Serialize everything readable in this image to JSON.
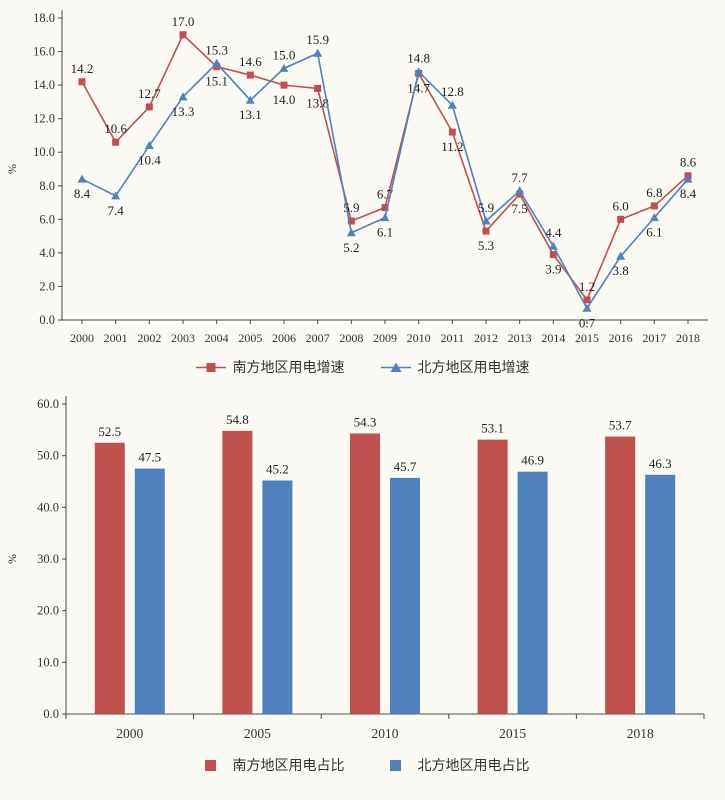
{
  "colors": {
    "south": "#C0504D",
    "north": "#4F81BD",
    "axis": "#4a4a4a",
    "text": "#1f1f1f",
    "background": "#fbfaf4"
  },
  "chart_data": [
    {
      "type": "line",
      "title": "",
      "xlabel": "",
      "ylabel": "%",
      "ylim": [
        0,
        18
      ],
      "ytick_step": 2,
      "grid": false,
      "legend_position": "bottom",
      "categories": [
        "2000",
        "2001",
        "2002",
        "2003",
        "2004",
        "2005",
        "2006",
        "2007",
        "2008",
        "2009",
        "2010",
        "2011",
        "2012",
        "2013",
        "2014",
        "2015",
        "2016",
        "2017",
        "2018"
      ],
      "series": [
        {
          "name": "南方地区用电增速",
          "marker": "square",
          "color": "#C0504D",
          "values": [
            14.2,
            10.6,
            12.7,
            17.0,
            15.1,
            14.6,
            14.0,
            13.8,
            5.9,
            6.7,
            14.7,
            11.2,
            5.3,
            7.5,
            3.9,
            1.2,
            6.0,
            6.8,
            8.6
          ]
        },
        {
          "name": "北方地区用电增速",
          "marker": "triangle",
          "color": "#4F81BD",
          "values": [
            8.4,
            7.4,
            10.4,
            13.3,
            15.3,
            13.1,
            15.0,
            15.9,
            5.2,
            6.1,
            14.8,
            12.8,
            5.9,
            7.7,
            4.4,
            0.7,
            3.8,
            6.1,
            8.4
          ]
        }
      ]
    },
    {
      "type": "bar",
      "title": "",
      "xlabel": "",
      "ylabel": "%",
      "ylim": [
        0,
        60
      ],
      "ytick_step": 10,
      "grid": false,
      "legend_position": "bottom",
      "categories": [
        "2000",
        "2005",
        "2010",
        "2015",
        "2018"
      ],
      "series": [
        {
          "name": "南方地区用电占比",
          "marker": "square",
          "color": "#C0504D",
          "values": [
            52.5,
            54.8,
            54.3,
            53.1,
            53.7
          ]
        },
        {
          "name": "北方地区用电占比",
          "marker": "square",
          "color": "#4F81BD",
          "values": [
            47.5,
            45.2,
            45.7,
            46.9,
            46.3
          ]
        }
      ]
    }
  ]
}
